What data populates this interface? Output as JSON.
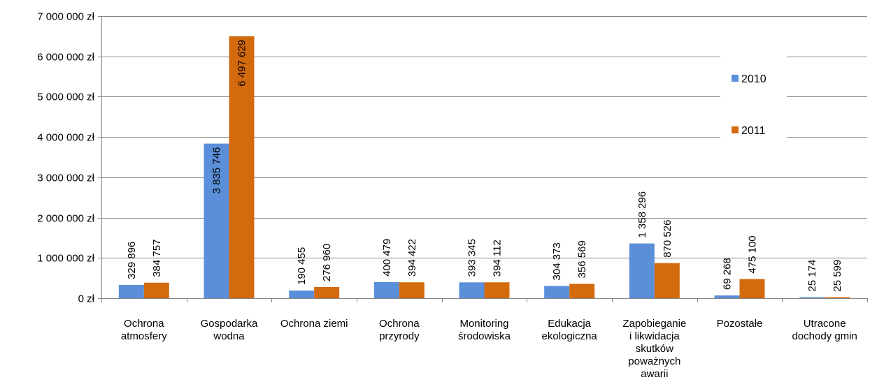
{
  "chart_data": {
    "type": "bar",
    "title": "",
    "xlabel": "",
    "ylabel": "",
    "ylim": [
      0,
      7000000
    ],
    "yticks": [
      0,
      1000000,
      2000000,
      3000000,
      4000000,
      5000000,
      6000000,
      7000000
    ],
    "ytick_labels": [
      "0 zł",
      "1 000 000 zł",
      "2 000 000 zł",
      "3 000 000 zł",
      "4 000 000 zł",
      "5 000 000 zł",
      "6 000 000 zł",
      "7 000 000 zł"
    ],
    "grid": true,
    "legend_position": "right",
    "categories": [
      [
        "Ochrona",
        "atmosfery"
      ],
      [
        "Gospodarka",
        "wodna"
      ],
      [
        "Ochrona ziemi"
      ],
      [
        "Ochrona",
        "przyrody"
      ],
      [
        "Monitoring",
        "środowiska"
      ],
      [
        "Edukacja",
        "ekologiczna"
      ],
      [
        "Zapobieganie",
        "i likwidacja",
        "skutków",
        "poważnych",
        "awarii"
      ],
      [
        "Pozostałe"
      ],
      [
        "Utracone",
        "dochody gmin"
      ]
    ],
    "series": [
      {
        "name": "2010",
        "color": "#5B8FD9",
        "values": [
          329896,
          3835746,
          190455,
          400479,
          393345,
          304373,
          1358296,
          69268,
          25174
        ],
        "labels": [
          "329 896",
          "3 835 746",
          "190 455",
          "400 479",
          "393 345",
          "304 373",
          "1 358 296",
          "69 268",
          "25 174"
        ]
      },
      {
        "name": "2011",
        "color": "#D46A0E",
        "values": [
          384757,
          6497629,
          276960,
          394422,
          394112,
          356569,
          870526,
          475100,
          25599
        ],
        "labels": [
          "384 757",
          "6 497 629",
          "276 960",
          "394 422",
          "394 112",
          "356 569",
          "870 526",
          "475 100",
          "25 599"
        ]
      }
    ]
  }
}
